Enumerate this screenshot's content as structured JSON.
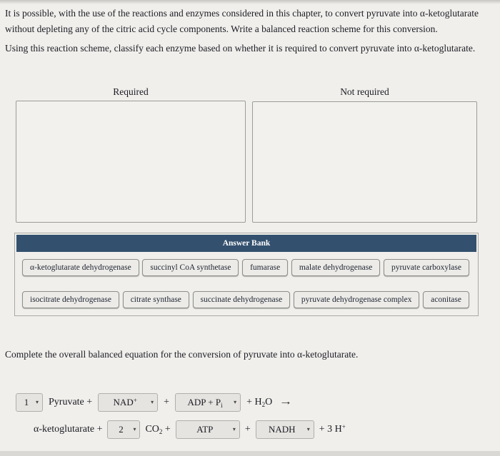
{
  "intro": {
    "para1": "It is possible, with the use of the reactions and enzymes considered in this chapter, to convert pyruvate into α-ketoglutarate without depleting any of the citric acid cycle components. Write a balanced reaction scheme for this conversion.",
    "para2": "Using this reaction scheme, classify each enzyme based on whether it is required to convert pyruvate into α-ketoglutarate."
  },
  "bins": {
    "required_label": "Required",
    "not_required_label": "Not required"
  },
  "answer_bank": {
    "title": "Answer Bank",
    "row1": [
      "α-ketoglutarate dehydrogenase",
      "succinyl CoA synthetase",
      "fumarase",
      "malate dehydrogenase",
      "pyruvate carboxylase"
    ],
    "row2": [
      "isocitrate dehydrogenase",
      "citrate synthase",
      "succinate dehydrogenase",
      "pyruvate dehydrogenase complex",
      "aconitase"
    ]
  },
  "equation": {
    "instruction": "Complete the overall balanced equation for the conversion of pyruvate into α-ketoglutarate.",
    "dropdown_arrow": "▾",
    "line1": {
      "coeff": "1",
      "pyruvate": "Pyruvate +",
      "nad_base": "NAD",
      "nad_sup": "+",
      "plus": "+",
      "adp_base": "ADP + P",
      "adp_sub": "i",
      "water_pre": "+ H",
      "water_sub": "2",
      "water_post": "O",
      "arrow": "→"
    },
    "line2": {
      "akg": "α-ketoglutarate +",
      "coeff": "2",
      "co2_base": "CO",
      "co2_sub": "2",
      "co2_plus": " +",
      "atp": "ATP",
      "plus": "+",
      "nadh": "NADH",
      "h_pre": "+ 3 H",
      "h_sup": "+"
    }
  },
  "colors": {
    "answer_bank_header": "#33506e",
    "page_background": "#f0efeb",
    "chip_background": "#ecebe7",
    "dropdown_background": "#e6e4e0"
  }
}
